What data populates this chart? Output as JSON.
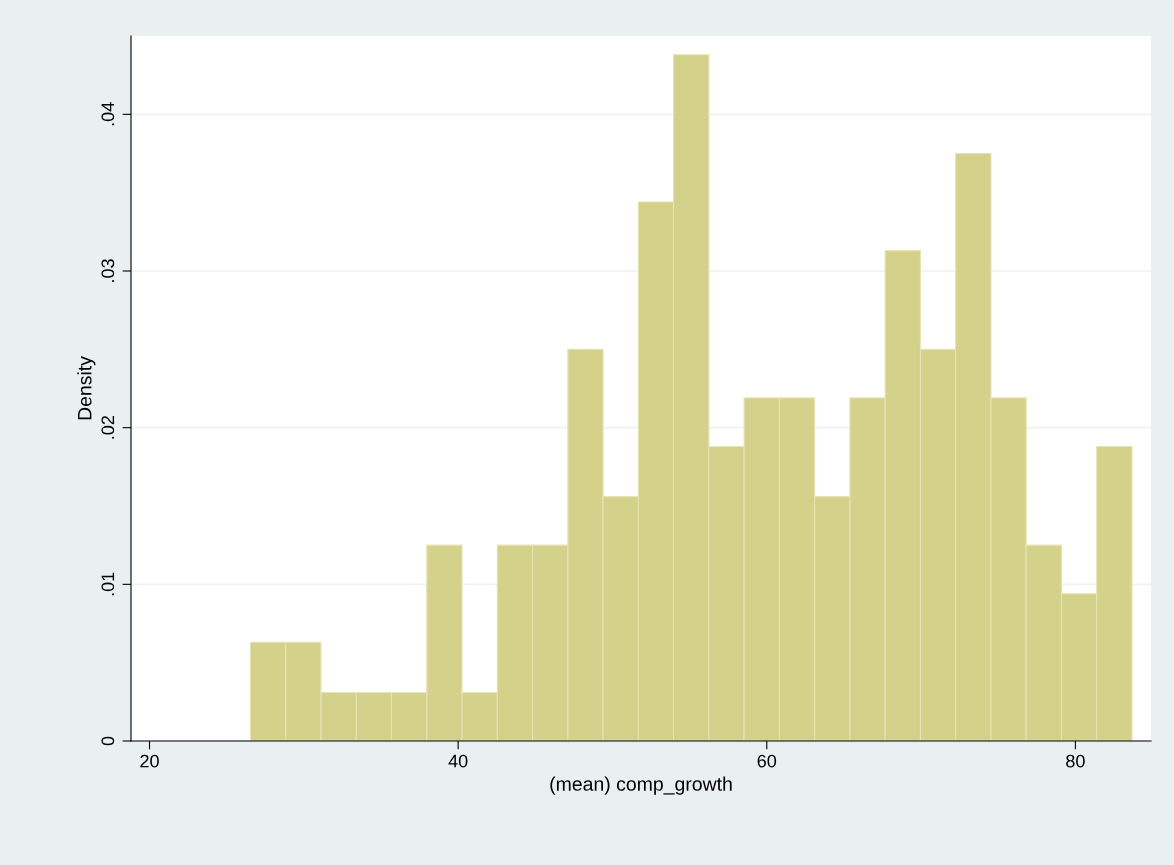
{
  "chart_data": {
    "type": "histogram",
    "xlabel": "(mean) comp_growth",
    "ylabel": "Density",
    "color": "#d4d18a",
    "bins": [
      26.54,
      28.83,
      31.11,
      33.4,
      35.68,
      37.97,
      40.25,
      42.54,
      44.82,
      47.11,
      49.39,
      51.68,
      53.96,
      56.25,
      58.53,
      60.82,
      63.1,
      65.39,
      67.67,
      69.96,
      72.24,
      74.53,
      76.81,
      79.1,
      81.38,
      83.67
    ],
    "values": [
      0.0063,
      0.0063,
      0.0031,
      0.0031,
      0.0031,
      0.0125,
      0.0031,
      0.0125,
      0.0125,
      0.025,
      0.0156,
      0.0344,
      0.0438,
      0.0188,
      0.0219,
      0.0219,
      0.0156,
      0.0219,
      0.0313,
      0.025,
      0.0375,
      0.0219,
      0.0125,
      0.0094,
      0.0188
    ],
    "xlim": [
      18.8,
      84.9
    ],
    "ylim": [
      0,
      0.045
    ],
    "xticks": [
      20,
      40,
      60,
      80
    ],
    "yticks": [
      0,
      {
        "value": 0.01,
        "label": ".01"
      },
      {
        "value": 0.02,
        "label": ".02"
      },
      {
        "value": 0.03,
        "label": ".03"
      },
      {
        "value": 0.04,
        "label": ".04"
      }
    ],
    "grid": "y"
  }
}
